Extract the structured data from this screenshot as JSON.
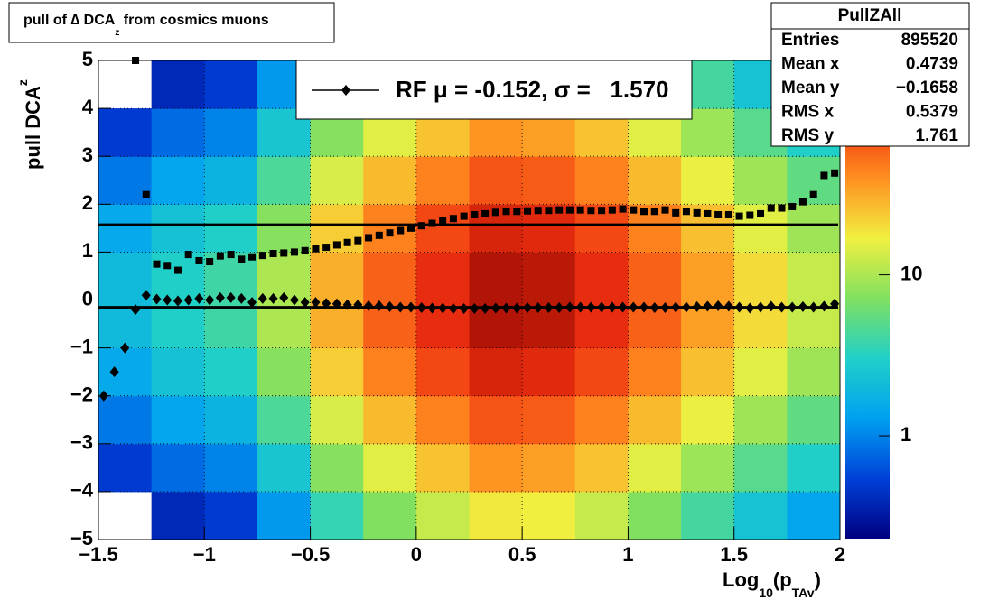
{
  "chart_data": {
    "type": "heatmap-profile",
    "title": [
      "pull of ∆ DCA",
      "z",
      " from cosmics muons"
    ],
    "x_label": [
      "Log",
      "10",
      "(p",
      "TAv",
      ")"
    ],
    "y_label": [
      "pull DCA",
      "z"
    ],
    "xlim": [
      -1.5,
      2
    ],
    "ylim": [
      -5,
      5
    ],
    "xticks": [
      {
        "value": -1.5,
        "label": "−1.5"
      },
      {
        "value": -1,
        "label": "−1"
      },
      {
        "value": -0.5,
        "label": "−0.5"
      },
      0,
      0.5,
      1,
      1.5,
      2
    ],
    "yticks": [
      {
        "value": -5,
        "label": "−5"
      },
      {
        "value": -4,
        "label": "−4"
      },
      {
        "value": -3,
        "label": "−3"
      },
      {
        "value": -2,
        "label": "−2"
      },
      {
        "value": -1,
        "label": "−1"
      },
      0,
      1,
      2,
      3,
      4,
      5
    ],
    "grid": true,
    "zlim": [
      0.23,
      220
    ],
    "zlog": true,
    "zticks": [
      1,
      10
    ],
    "palette": [
      "#000080",
      "#0040d8",
      "#00a0f0",
      "#20d0c8",
      "#80e060",
      "#f0f040",
      "#ff9020",
      "#f03010",
      "#800000"
    ],
    "heatmap": {
      "xedges": [
        -1.5,
        -1.25,
        -1,
        -0.75,
        -0.5,
        -0.25,
        0,
        0.25,
        0.5,
        0.75,
        1,
        1.25,
        1.5,
        1.75,
        2
      ],
      "yedges": [
        -5,
        -4,
        -3,
        -2,
        -1,
        0,
        1,
        2,
        3,
        4,
        5
      ],
      "z": [
        [
          0.2,
          0.4,
          0.5,
          1.2,
          3.6,
          7.2,
          12,
          18,
          17,
          12,
          7.2,
          4.2,
          2.4,
          1.4
        ],
        [
          0.5,
          0.8,
          1,
          2.5,
          7.5,
          15,
          25,
          38,
          35,
          25,
          15,
          8.8,
          5,
          3
        ],
        [
          0.9,
          1.4,
          1.8,
          4.5,
          14,
          27,
          45,
          68,
          63,
          45,
          27,
          16,
          9,
          5.4
        ],
        [
          1.5,
          2.3,
          3,
          7.5,
          23,
          45,
          75,
          113,
          105,
          75,
          45,
          26,
          15,
          9
        ],
        [
          2,
          3,
          4,
          10,
          30,
          60,
          100,
          150,
          140,
          100,
          60,
          35,
          20,
          12
        ],
        [
          2,
          3,
          4,
          10,
          30,
          60,
          100,
          150,
          140,
          100,
          60,
          35,
          20,
          12
        ],
        [
          1.5,
          2.3,
          3,
          7.5,
          23,
          45,
          75,
          113,
          105,
          75,
          45,
          26,
          15,
          9
        ],
        [
          0.9,
          1.4,
          1.8,
          4.5,
          14,
          27,
          45,
          68,
          63,
          45,
          27,
          16,
          9,
          5.4
        ],
        [
          0.5,
          0.8,
          1,
          2.5,
          7.5,
          15,
          25,
          38,
          35,
          25,
          15,
          8.8,
          5,
          3
        ],
        [
          0.2,
          0.4,
          0.5,
          1.2,
          3.6,
          7.2,
          12,
          18,
          17,
          12,
          7.2,
          4.2,
          2.4,
          1.4
        ]
      ]
    },
    "x": [
      -1.475,
      -1.425,
      -1.375,
      -1.325,
      -1.275,
      -1.225,
      -1.175,
      -1.125,
      -1.075,
      -1.025,
      -0.975,
      -0.925,
      -0.875,
      -0.825,
      -0.775,
      -0.725,
      -0.675,
      -0.625,
      -0.575,
      -0.525,
      -0.475,
      -0.425,
      -0.375,
      -0.325,
      -0.275,
      -0.225,
      -0.175,
      -0.125,
      -0.075,
      -0.025,
      0.025,
      0.075,
      0.125,
      0.175,
      0.225,
      0.275,
      0.325,
      0.375,
      0.425,
      0.475,
      0.525,
      0.575,
      0.625,
      0.675,
      0.725,
      0.775,
      0.825,
      0.875,
      0.925,
      0.975,
      1.025,
      1.075,
      1.125,
      1.175,
      1.225,
      1.275,
      1.325,
      1.375,
      1.425,
      1.475,
      1.525,
      1.575,
      1.625,
      1.675,
      1.725,
      1.775,
      1.825,
      1.875,
      1.925,
      1.975
    ],
    "series": [
      {
        "marker": "diamond",
        "color": "#000000",
        "values": [
          -2.0,
          -1.5,
          -1.0,
          -0.2,
          0.1,
          0.02,
          0.0,
          -0.02,
          0.0,
          0.03,
          0.0,
          0.05,
          0.05,
          0.03,
          -0.05,
          0.03,
          0.03,
          0.05,
          0.0,
          -0.05,
          -0.05,
          -0.07,
          -0.08,
          -0.1,
          -0.1,
          -0.12,
          -0.12,
          -0.14,
          -0.15,
          -0.15,
          -0.16,
          -0.17,
          -0.17,
          -0.18,
          -0.18,
          -0.18,
          -0.18,
          -0.17,
          -0.17,
          -0.17,
          -0.16,
          -0.16,
          -0.16,
          -0.16,
          -0.15,
          -0.15,
          -0.15,
          -0.15,
          -0.15,
          -0.15,
          -0.15,
          -0.15,
          -0.16,
          -0.16,
          -0.15,
          -0.15,
          -0.14,
          -0.13,
          -0.12,
          -0.13,
          -0.15,
          -0.17,
          -0.15,
          -0.13,
          -0.15,
          -0.15,
          -0.14,
          -0.15,
          -0.13,
          -0.08
        ]
      },
      {
        "marker": "square",
        "color": "#000000",
        "values": [
          null,
          null,
          null,
          5.0,
          2.2,
          0.75,
          0.72,
          0.62,
          0.95,
          0.82,
          0.8,
          0.92,
          0.95,
          0.85,
          0.9,
          0.93,
          0.97,
          0.98,
          1.0,
          1.03,
          1.07,
          1.1,
          1.15,
          1.2,
          1.24,
          1.3,
          1.35,
          1.4,
          1.45,
          1.5,
          1.55,
          1.6,
          1.65,
          1.7,
          1.75,
          1.78,
          1.8,
          1.83,
          1.85,
          1.85,
          1.86,
          1.87,
          1.87,
          1.88,
          1.88,
          1.88,
          1.87,
          1.87,
          1.88,
          1.9,
          1.88,
          1.85,
          1.85,
          1.88,
          1.82,
          1.85,
          1.82,
          1.8,
          1.78,
          1.78,
          1.75,
          1.77,
          1.8,
          1.92,
          1.92,
          1.95,
          2.05,
          2.2,
          2.6,
          2.65
        ]
      }
    ],
    "fit": {
      "mu": -0.152,
      "sigma": 1.57
    },
    "legend": "RF μ = -0.152, σ =   1.570",
    "stats": {
      "title": "PullZAll",
      "rows": [
        [
          "Entries",
          "895520"
        ],
        [
          "Mean x",
          "0.4739"
        ],
        [
          "Mean y",
          "−0.1658"
        ],
        [
          "RMS x",
          "0.5379"
        ],
        [
          "RMS y",
          "1.761"
        ]
      ]
    }
  }
}
